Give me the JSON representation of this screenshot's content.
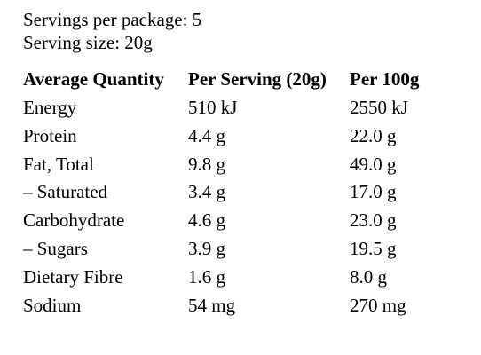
{
  "header": {
    "servings": "Servings per package: 5",
    "serving_size": "Serving size: 20g"
  },
  "table": {
    "columns": [
      "Average Quantity",
      "Per Serving (20g)",
      "Per 100g"
    ],
    "rows": [
      [
        "Energy",
        "510 kJ",
        "2550 kJ"
      ],
      [
        "Protein",
        "4.4 g",
        "22.0 g"
      ],
      [
        "Fat, Total",
        "9.8 g",
        "49.0 g"
      ],
      [
        "– Saturated",
        "3.4 g",
        "17.0 g"
      ],
      [
        "Carbohydrate",
        "4.6 g",
        "23.0 g"
      ],
      [
        "– Sugars",
        "3.9 g",
        "19.5 g"
      ],
      [
        "Dietary Fibre",
        "1.6 g",
        "8.0 g"
      ],
      [
        "Sodium",
        "54 mg",
        "270 mg"
      ]
    ]
  }
}
